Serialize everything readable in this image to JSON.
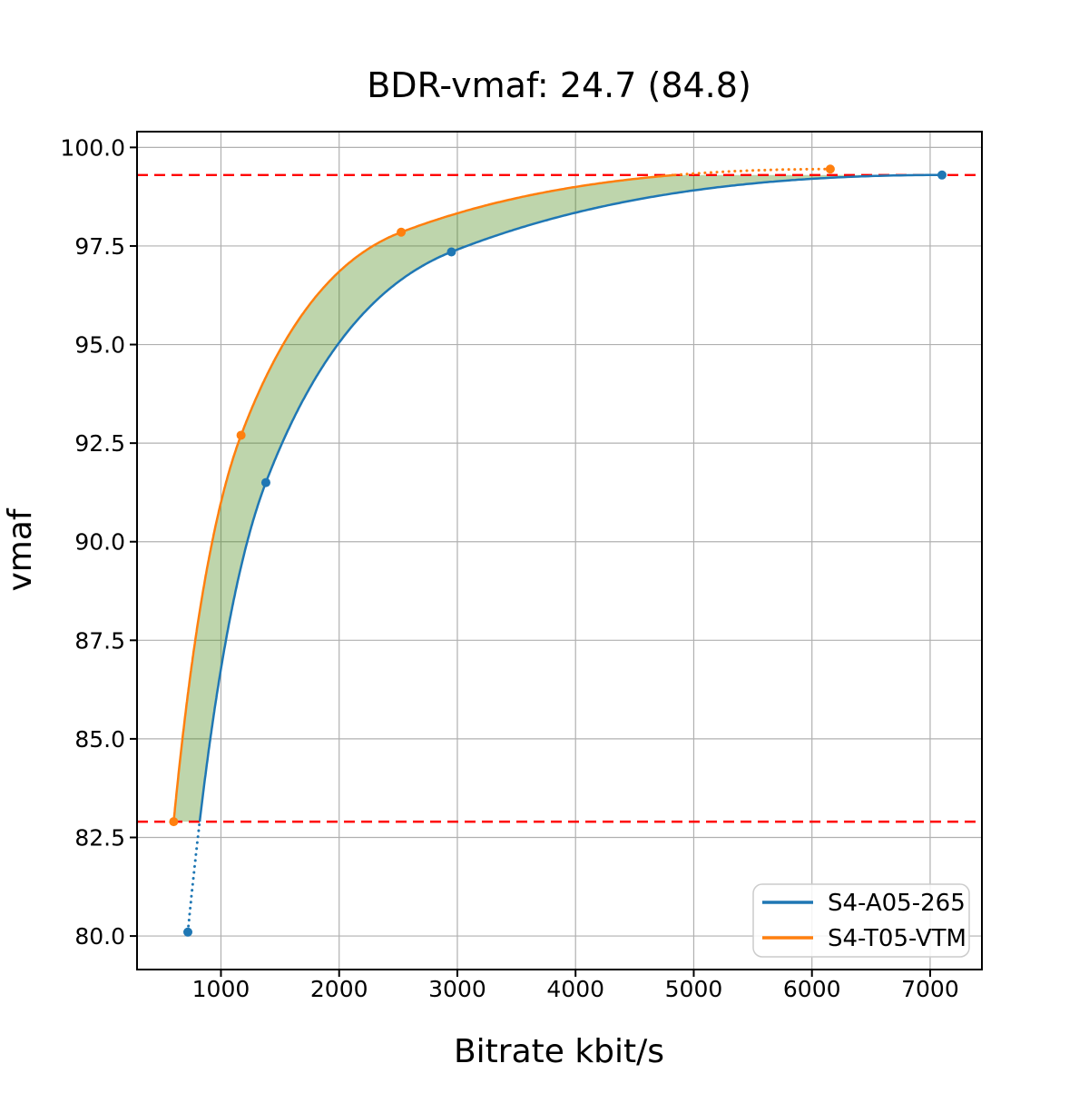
{
  "chart_data": {
    "type": "line",
    "title": "BDR-vmaf: 24.7 (84.8)",
    "xlabel": "Bitrate kbit/s",
    "ylabel": "vmaf",
    "xlim": [
      290,
      7438
    ],
    "ylim": [
      79.15,
      100.4
    ],
    "xticks": [
      1000,
      2000,
      3000,
      4000,
      5000,
      6000,
      7000
    ],
    "xtick_labels": [
      "1000",
      "2000",
      "3000",
      "4000",
      "5000",
      "6000",
      "7000"
    ],
    "yticks": [
      80.0,
      82.5,
      85.0,
      87.5,
      90.0,
      92.5,
      95.0,
      97.5,
      100.0
    ],
    "ytick_labels": [
      "80.0",
      "82.5",
      "85.0",
      "87.5",
      "90.0",
      "92.5",
      "95.0",
      "97.5",
      "100.0"
    ],
    "grid": true,
    "grid_color": "#b0b0b0",
    "series": [
      {
        "name": "S4-A05-265",
        "color": "#1f77b4",
        "line_style": "solid (dotted outside overlap interval)",
        "points": {
          "x": [
            720,
            1380,
            2950,
            7100
          ],
          "y": [
            80.1,
            91.5,
            97.35,
            99.3
          ]
        }
      },
      {
        "name": "S4-T05-VTM",
        "color": "#ff7f0e",
        "line_style": "solid (dotted outside overlap interval)",
        "points": {
          "x": [
            600,
            1170,
            2525,
            6155
          ],
          "y": [
            82.9,
            92.7,
            97.85,
            99.45
          ]
        }
      }
    ],
    "overlap_interval": {
      "low": 82.9,
      "high": 99.3,
      "line_color": "#ff0000",
      "line_style": "dashed"
    },
    "fill_between": {
      "color": "#458712",
      "opacity": 0.35
    },
    "legend": {
      "position": "lower right",
      "entries": [
        "S4-A05-265",
        "S4-T05-VTM"
      ]
    }
  }
}
